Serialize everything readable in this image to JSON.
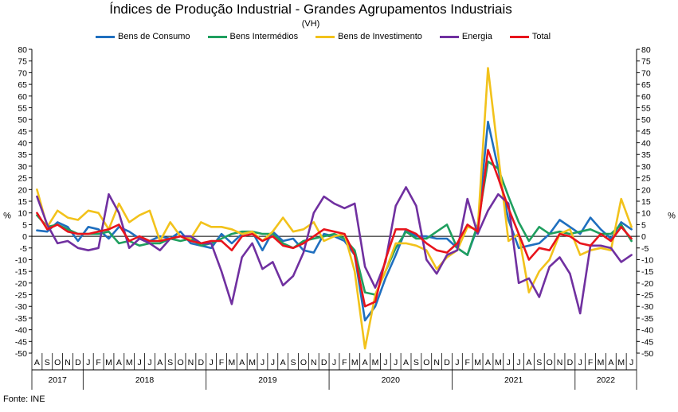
{
  "chart_data": {
    "type": "line",
    "title": "Índices de Produção Industrial - Grandes Agrupamentos Industriais",
    "subtitle": "(VH)",
    "ylabel_left": "%",
    "ylabel_right": "%",
    "ylim": [
      -50,
      80
    ],
    "yticks": [
      -50,
      -45,
      -40,
      -35,
      -30,
      -25,
      -20,
      -15,
      -10,
      -5,
      0,
      5,
      10,
      15,
      20,
      25,
      30,
      35,
      40,
      45,
      50,
      55,
      60,
      65,
      70,
      75,
      80
    ],
    "legend_position": "top",
    "grid": false,
    "x_month_labels": [
      "A",
      "S",
      "O",
      "N",
      "D",
      "J",
      "F",
      "M",
      "A",
      "M",
      "J",
      "J",
      "A",
      "S",
      "O",
      "N",
      "D",
      "J",
      "F",
      "M",
      "A",
      "M",
      "J",
      "J",
      "A",
      "S",
      "O",
      "N",
      "D",
      "J",
      "F",
      "M",
      "A",
      "M",
      "J",
      "J",
      "A",
      "S",
      "O",
      "N",
      "D",
      "J",
      "F",
      "M",
      "A",
      "M",
      "J",
      "J",
      "A",
      "S",
      "O",
      "N",
      "D",
      "J",
      "F",
      "M",
      "A",
      "M",
      "J"
    ],
    "year_groups": [
      {
        "label": "2017",
        "count": 5
      },
      {
        "label": "2018",
        "count": 12
      },
      {
        "label": "2019",
        "count": 12
      },
      {
        "label": "2020",
        "count": 12
      },
      {
        "label": "2021",
        "count": 12
      },
      {
        "label": "2022",
        "count": 6
      }
    ],
    "series": [
      {
        "name": "Bens de Consumo",
        "color": "#1f6fbf",
        "values": [
          2.5,
          2,
          6,
          4,
          -2,
          4,
          3,
          -1,
          4,
          2,
          -1,
          -2,
          0,
          -1,
          2,
          -3,
          -4,
          -5,
          1,
          -3,
          1,
          2,
          -6,
          2,
          -2,
          -1,
          -6,
          -7,
          1,
          0,
          -2,
          -8,
          -36,
          -30,
          -18,
          -8,
          3,
          0,
          0,
          -1,
          -1,
          -5,
          -8,
          4,
          49,
          29,
          7,
          -5,
          -4,
          -3,
          1,
          7,
          4,
          1,
          8,
          3,
          -1,
          6,
          3
        ]
      },
      {
        "name": "Bens Intermédios",
        "color": "#1f9f5f",
        "values": [
          9,
          4,
          5,
          3,
          1,
          1,
          1,
          2,
          -3,
          -2,
          -4,
          -3,
          -3,
          -1,
          -2,
          -1,
          -4,
          -3,
          -1,
          1,
          2,
          2,
          1,
          1,
          -3,
          -5,
          -2,
          -1,
          0,
          1,
          -1,
          -6,
          -24,
          -25,
          -15,
          -5,
          2,
          -1,
          -1,
          2,
          5,
          -5,
          -8,
          5,
          32,
          29,
          17,
          6,
          -2,
          4,
          1,
          2,
          1,
          2,
          3,
          1,
          1,
          5,
          -2
        ]
      },
      {
        "name": "Bens de Investimento",
        "color": "#f2c21b",
        "values": [
          20,
          4,
          11,
          8,
          7,
          11,
          10,
          3,
          14,
          6,
          9,
          11,
          -2,
          6,
          0,
          -1,
          6,
          4,
          4,
          3,
          1,
          2,
          -2,
          2,
          8,
          2,
          3,
          6,
          -2,
          0,
          1,
          -15,
          -48,
          -25,
          -15,
          -3,
          -3,
          -4,
          -6,
          -14,
          -9,
          -6,
          4,
          3,
          72,
          35,
          -2,
          1,
          -24,
          -15,
          -10,
          1,
          3,
          -8,
          -6,
          -5,
          -6,
          16,
          4
        ]
      },
      {
        "name": "Energia",
        "color": "#7030a0",
        "values": [
          17,
          5,
          -3,
          -2,
          -5,
          -6,
          -5,
          18,
          10,
          -5,
          -1,
          -3,
          -6,
          -1,
          0,
          0,
          -3,
          -3,
          -15,
          -29,
          -9,
          -3,
          -14,
          -11,
          -21,
          -17,
          -7,
          10,
          17,
          14,
          12,
          14,
          -13,
          -22,
          -11,
          13,
          21,
          13,
          -10,
          -16,
          -8,
          -6,
          16,
          1,
          11,
          18,
          14,
          -20,
          -18,
          -26,
          -13,
          -9,
          -16,
          -33,
          -4,
          -4,
          -5,
          -11,
          -8
        ]
      },
      {
        "name": "Total",
        "color": "#e8141c",
        "values": [
          10,
          3,
          5,
          2,
          1,
          1,
          2,
          3,
          5,
          -2,
          0,
          -2,
          -2,
          -1,
          0,
          -2,
          -3,
          -2,
          -2,
          -6,
          0,
          1,
          -2,
          0,
          -4,
          -5,
          -3,
          0,
          3,
          2,
          1,
          -8,
          -30,
          -28,
          -10,
          3,
          3,
          1,
          -3,
          -6,
          -7,
          -3,
          5,
          2,
          37,
          25,
          12,
          1,
          -10,
          -5,
          -6,
          1,
          0,
          -3,
          -4,
          1,
          -2,
          4,
          -1
        ]
      }
    ]
  },
  "source": "Fonte: INE"
}
